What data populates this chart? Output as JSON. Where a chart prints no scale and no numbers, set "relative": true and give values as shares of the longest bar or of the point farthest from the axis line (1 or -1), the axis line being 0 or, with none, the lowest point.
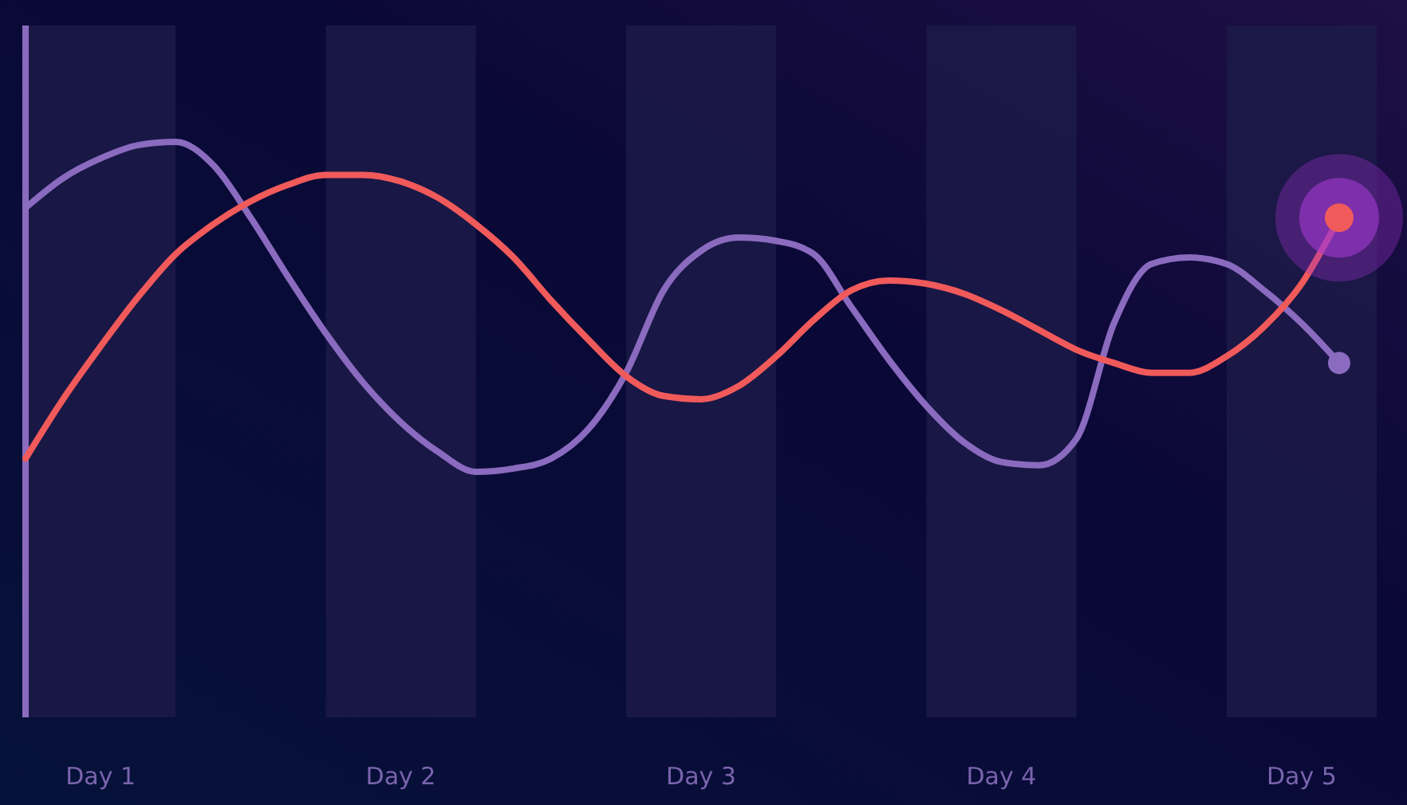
{
  "chart_data": {
    "type": "line",
    "relative": true,
    "categories": [
      null,
      null,
      "Day 1",
      null,
      null,
      null,
      null,
      null,
      null,
      null,
      "Day 2",
      null,
      null,
      null,
      null,
      null,
      null,
      null,
      "Day 3",
      null,
      null,
      null,
      null,
      null,
      null,
      null,
      "Day 4",
      null,
      null,
      null,
      null,
      null,
      null,
      null,
      "Day 5",
      null,
      null
    ],
    "series": [
      {
        "color": "#8a6bbf",
        "values": [
          0.8,
          0.89,
          0.95,
          0.99,
          1,
          0.93,
          0.77,
          0.59,
          0.42,
          0.27,
          0.15,
          0.06,
          0,
          0.01,
          0.04,
          0.13,
          0.3,
          0.55,
          0.67,
          0.71,
          0.7,
          0.66,
          0.5,
          0.34,
          0.2,
          0.09,
          0.03,
          0.02,
          0.1,
          0.45,
          0.63,
          0.65,
          0.63,
          0.55,
          0.45,
          0.33,
          null
        ]
      },
      {
        "color": "#f05a5a",
        "values": [
          0.04,
          0.22,
          0.38,
          0.53,
          0.66,
          0.75,
          0.82,
          0.87,
          0.9,
          0.9,
          0.88,
          0.83,
          0.75,
          0.65,
          0.52,
          0.4,
          0.29,
          0.23,
          0.22,
          0.26,
          0.35,
          0.46,
          0.55,
          0.58,
          0.57,
          0.54,
          0.49,
          0.43,
          0.37,
          0.33,
          0.3,
          0.3,
          0.35,
          0.44,
          0.57,
          0.77,
          null
        ]
      }
    ],
    "grid": false,
    "line_style": "solid"
  }
}
